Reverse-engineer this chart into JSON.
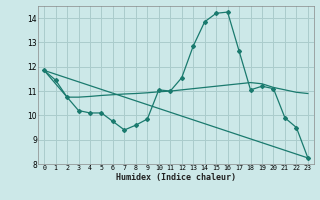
{
  "title": "",
  "xlabel": "Humidex (Indice chaleur)",
  "bg_color": "#cce8e8",
  "grid_color": "#aacccc",
  "line_color": "#1a7a6e",
  "xlim": [
    -0.5,
    23.5
  ],
  "ylim": [
    8,
    14.5
  ],
  "yticks": [
    8,
    9,
    10,
    11,
    12,
    13,
    14
  ],
  "xticks": [
    0,
    1,
    2,
    3,
    4,
    5,
    6,
    7,
    8,
    9,
    10,
    11,
    12,
    13,
    14,
    15,
    16,
    17,
    18,
    19,
    20,
    21,
    22,
    23
  ],
  "line1_x": [
    0,
    1,
    2,
    3,
    4,
    5,
    6,
    7,
    8,
    9,
    10,
    11,
    12,
    13,
    14,
    15,
    16,
    17,
    18,
    19,
    20,
    21,
    22,
    23
  ],
  "line1_y": [
    11.85,
    11.45,
    10.75,
    10.2,
    10.1,
    10.1,
    9.75,
    9.4,
    9.6,
    9.85,
    11.05,
    11.0,
    11.55,
    12.85,
    13.85,
    14.2,
    14.25,
    12.65,
    11.05,
    11.2,
    11.1,
    9.9,
    9.5,
    8.25
  ],
  "line2_x": [
    0,
    2,
    3,
    4,
    5,
    6,
    7,
    8,
    9,
    10,
    11,
    12,
    13,
    14,
    15,
    16,
    17,
    18,
    19,
    20,
    21,
    22,
    23
  ],
  "line2_y": [
    11.85,
    10.75,
    10.75,
    10.78,
    10.82,
    10.85,
    10.88,
    10.9,
    10.93,
    10.97,
    11.0,
    11.05,
    11.1,
    11.15,
    11.2,
    11.25,
    11.3,
    11.35,
    11.3,
    11.15,
    11.05,
    10.95,
    10.9
  ],
  "line3_x": [
    0,
    23
  ],
  "line3_y": [
    11.85,
    8.25
  ]
}
